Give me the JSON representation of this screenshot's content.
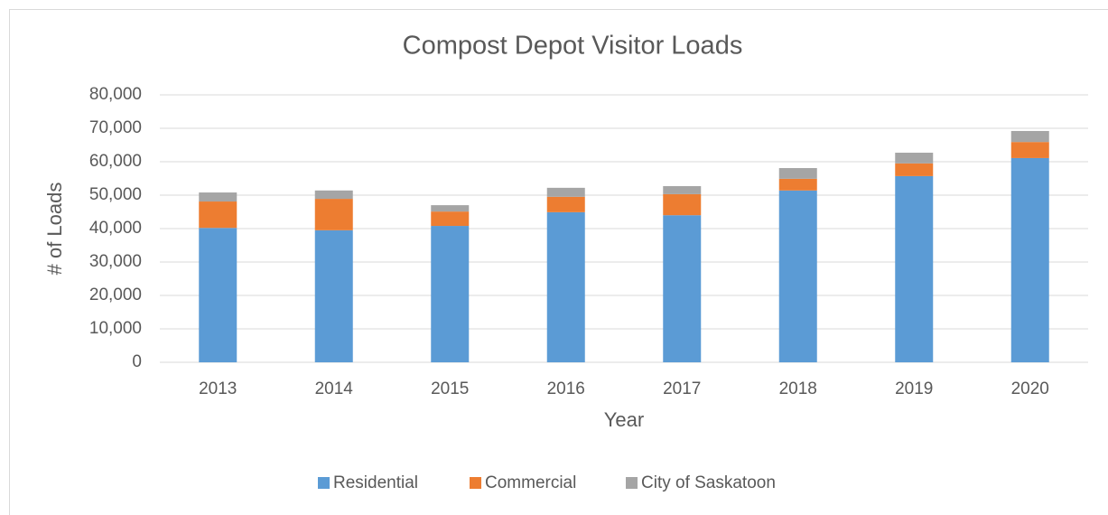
{
  "chart_data": {
    "type": "stacked_bar",
    "title": "Compost Depot Visitor Loads",
    "x_label": "Year",
    "y_label": "# of Loads",
    "categories": [
      "2013",
      "2014",
      "2015",
      "2016",
      "2017",
      "2018",
      "2019",
      "2020"
    ],
    "series": [
      {
        "name": "Residential",
        "color": "#5b9bd5",
        "values": [
          40200,
          39500,
          40800,
          44900,
          44000,
          51400,
          55700,
          61100
        ]
      },
      {
        "name": "Commercial",
        "color": "#ed7d31",
        "values": [
          7900,
          9400,
          4300,
          4600,
          6300,
          3500,
          3800,
          4800
        ]
      },
      {
        "name": "City of Saskatoon",
        "color": "#a5a5a5",
        "values": [
          2700,
          2500,
          1900,
          2700,
          2400,
          3200,
          3200,
          3300
        ]
      }
    ],
    "ylim": [
      0,
      80000
    ],
    "yticks": [
      0,
      {
        "value": 10000,
        "label": "10,000"
      },
      {
        "value": 20000,
        "label": "20,000"
      },
      {
        "value": 30000,
        "label": "30,000"
      },
      {
        "value": 40000,
        "label": "40,000"
      },
      {
        "value": 50000,
        "label": "50,000"
      },
      {
        "value": 60000,
        "label": "60,000"
      },
      {
        "value": 70000,
        "label": "70,000"
      },
      {
        "value": 80000,
        "label": "80,000"
      }
    ],
    "grid": true,
    "legend": "bottom"
  }
}
